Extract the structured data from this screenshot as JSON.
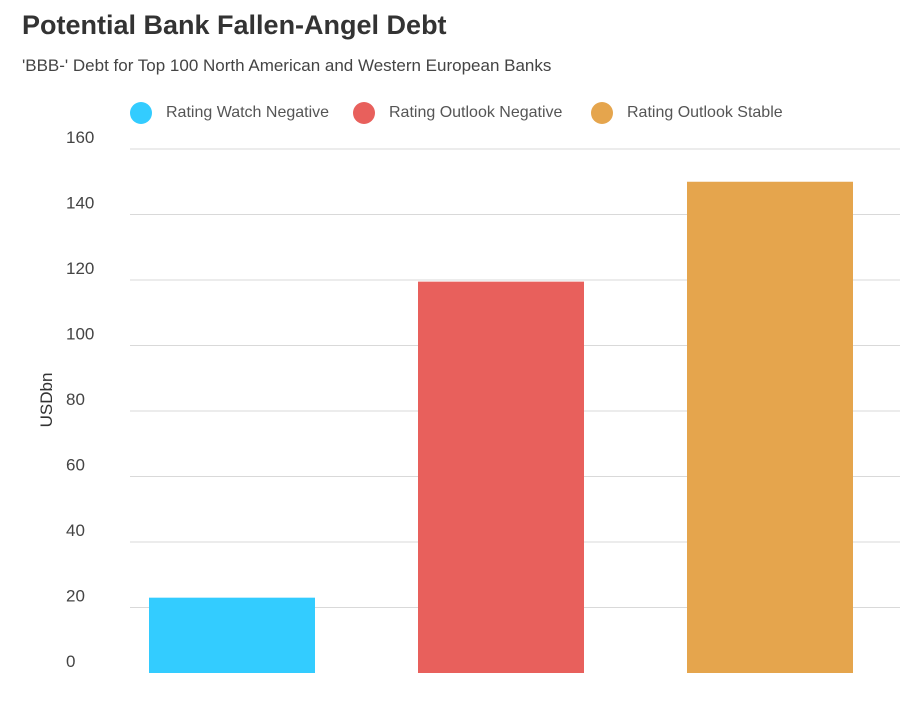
{
  "header": {
    "title": "Potential Bank Fallen-Angel Debt",
    "subtitle": "'BBB-' Debt for Top 100 North American and Western European Banks"
  },
  "legend": [
    {
      "label": "Rating Watch Negative",
      "color": "#33CCFF"
    },
    {
      "label": "Rating Outlook Negative",
      "color": "#E8605C"
    },
    {
      "label": "Rating Outlook Stable",
      "color": "#E5A54D"
    }
  ],
  "chart_data": {
    "type": "bar",
    "title": "Potential Bank Fallen-Angel Debt",
    "subtitle": "'BBB-' Debt for Top 100 North American and Western European Banks",
    "ylabel": "USDbn",
    "xlabel": "",
    "ylim": [
      0,
      160
    ],
    "yticks": [
      0,
      20,
      40,
      60,
      80,
      100,
      120,
      140,
      160
    ],
    "grid": true,
    "legend_position": "top",
    "series": [
      {
        "name": "Rating Watch Negative",
        "values": [
          23
        ],
        "color": "#33CCFF"
      },
      {
        "name": "Rating Outlook Negative",
        "values": [
          119.5
        ],
        "color": "#E8605C"
      },
      {
        "name": "Rating Outlook Stable",
        "values": [
          150
        ],
        "color": "#E5A54D"
      }
    ]
  }
}
